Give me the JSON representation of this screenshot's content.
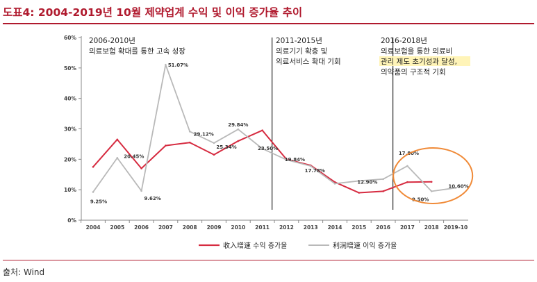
{
  "title": "도표4: 2004-2019년 10월 제약업계 수익 및 이익 증가율 추이",
  "source": "출처: Wind",
  "colors": {
    "title": "#b01a2e",
    "revenue_series": "#d62b40",
    "profit_series": "#b9b9b9",
    "highlight_circle": "#f08a37",
    "highlight_text_bg": "#fff4b8"
  },
  "chart_data": {
    "type": "line",
    "x": [
      "2004",
      "2005",
      "2006",
      "2007",
      "2008",
      "2009",
      "2010",
      "2011",
      "2012",
      "2013",
      "2014",
      "2015",
      "2016",
      "2017",
      "2018",
      "2019-10"
    ],
    "ylim": [
      0,
      60
    ],
    "y_ticks": [
      "0%",
      "10%",
      "20%",
      "30%",
      "40%",
      "50%",
      "60%"
    ],
    "grid": false,
    "legend_position": "bottom",
    "series": [
      {
        "name": "收入增速 수익 증가율",
        "values": [
          17.5,
          26.5,
          17.0,
          24.5,
          25.5,
          21.5,
          26.0,
          29.5,
          20.0,
          18.0,
          12.5,
          9.0,
          9.5,
          12.5,
          12.6,
          null
        ]
      },
      {
        "name": "利润增速 이익 증가율",
        "values": [
          9.25,
          20.45,
          9.62,
          51.07,
          29.12,
          25.34,
          29.84,
          23.5,
          19.84,
          17.78,
          12.0,
          12.9,
          13.5,
          17.8,
          9.5,
          10.6
        ]
      }
    ],
    "data_labels": [
      {
        "text": "9.25%",
        "x": "2004",
        "y": 9.25
      },
      {
        "text": "20.45%",
        "x": "2005",
        "y": 20.45
      },
      {
        "text": "9.62%",
        "x": "2006",
        "y": 9.62
      },
      {
        "text": "51.07%",
        "x": "2007",
        "y": 51.07
      },
      {
        "text": "29.12%",
        "x": "2008",
        "y": 29.12
      },
      {
        "text": "25.34%",
        "x": "2009",
        "y": 25.34
      },
      {
        "text": "29.84%",
        "x": "2010",
        "y": 29.84
      },
      {
        "text": "23.50%",
        "x": "2011",
        "y": 23.5
      },
      {
        "text": "19.84%",
        "x": "2012",
        "y": 19.84
      },
      {
        "text": "17.78%",
        "x": "2013",
        "y": 17.78
      },
      {
        "text": "12.90%",
        "x": "2015",
        "y": 12.9
      },
      {
        "text": "17.80%",
        "x": "2017",
        "y": 17.8
      },
      {
        "text": "9.50%",
        "x": "2018",
        "y": 9.5
      },
      {
        "text": "10.60%",
        "x": "2019-10",
        "y": 10.6
      }
    ],
    "period_dividers": [
      "2011",
      "2016"
    ],
    "period_annotations": [
      {
        "lines": [
          "2006-2010년",
          "의료보험 확대를 통한 고속 성장"
        ],
        "highlight_lines": []
      },
      {
        "lines": [
          "2011-2015년",
          "의료기기 확충 및",
          "의료서비스 확대 기회"
        ],
        "highlight_lines": []
      },
      {
        "lines": [
          "2016-2018년",
          "의료보험을 통한 의료비",
          "관리 제도 초기성과 달성,",
          "의약품의 구조적 기회"
        ],
        "highlight_lines": [
          2
        ]
      }
    ]
  }
}
